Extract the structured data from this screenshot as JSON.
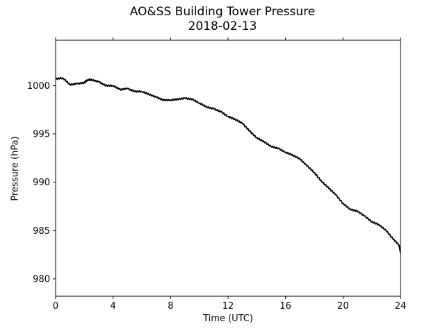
{
  "chart_data": {
    "type": "line",
    "title": "AO&SS Building Tower Pressure",
    "subtitle": "2018-02-13",
    "xlabel": "Time (UTC)",
    "ylabel": "Pressure (hPa)",
    "xlim": [
      0,
      24
    ],
    "ylim": [
      978.2,
      1004.7
    ],
    "xticks": [
      0,
      4,
      8,
      12,
      16,
      20,
      24
    ],
    "yticks": [
      980,
      985,
      990,
      995,
      1000
    ],
    "grid": false,
    "line_color": "#000000",
    "series": [
      {
        "x": [
          0,
          0.5,
          1.0,
          1.5,
          2.0,
          2.2,
          2.5,
          3.0,
          3.5,
          4.0,
          4.5,
          5.0,
          5.5,
          6.0,
          6.5,
          7.0,
          7.5,
          8.0,
          8.5,
          9.0,
          9.5,
          10.0,
          10.5,
          11.0,
          11.5,
          12.0,
          12.5,
          13.0,
          13.5,
          14.0,
          14.5,
          15.0,
          15.5,
          16.0,
          16.5,
          17.0,
          17.5,
          18.0,
          18.5,
          19.0,
          19.5,
          20.0,
          20.5,
          21.0,
          21.5,
          22.0,
          22.5,
          23.0,
          23.5,
          23.9,
          24.0
        ],
        "y": [
          1000.7,
          1000.8,
          1000.1,
          1000.2,
          1000.3,
          1000.6,
          1000.6,
          1000.4,
          1000.0,
          1000.0,
          999.6,
          999.7,
          999.4,
          999.4,
          999.1,
          998.8,
          998.5,
          998.5,
          998.6,
          998.7,
          998.6,
          998.2,
          997.8,
          997.6,
          997.3,
          996.8,
          996.5,
          996.1,
          995.3,
          994.6,
          994.2,
          993.7,
          993.5,
          993.1,
          992.8,
          992.4,
          991.7,
          991.0,
          990.1,
          989.4,
          988.7,
          987.8,
          987.2,
          987.0,
          986.5,
          985.9,
          985.6,
          985.0,
          984.1,
          983.5,
          982.7
        ]
      }
    ]
  }
}
